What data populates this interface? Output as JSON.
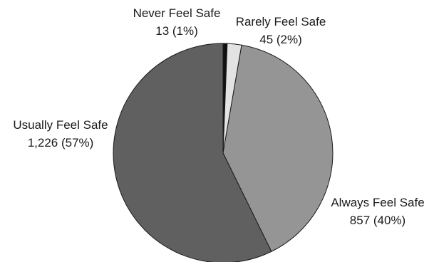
{
  "chart_data": {
    "type": "pie",
    "title": "",
    "slices": [
      {
        "name": "Never Feel Safe",
        "value": 13,
        "percent_label": "13 (1%)",
        "color": "#111111"
      },
      {
        "name": "Rarely Feel Safe",
        "value": 45,
        "percent_label": "45 (2%)",
        "color": "#e3e3e3"
      },
      {
        "name": "Always Feel Safe",
        "value": 857,
        "percent_label": "857 (40%)",
        "color": "#959595"
      },
      {
        "name": "Usually Feel Safe",
        "value": 1226,
        "percent_label": "1,226 (57%)",
        "color": "#606060"
      }
    ],
    "start_angle_deg": 0,
    "direction": "clockwise",
    "legend": "none"
  }
}
